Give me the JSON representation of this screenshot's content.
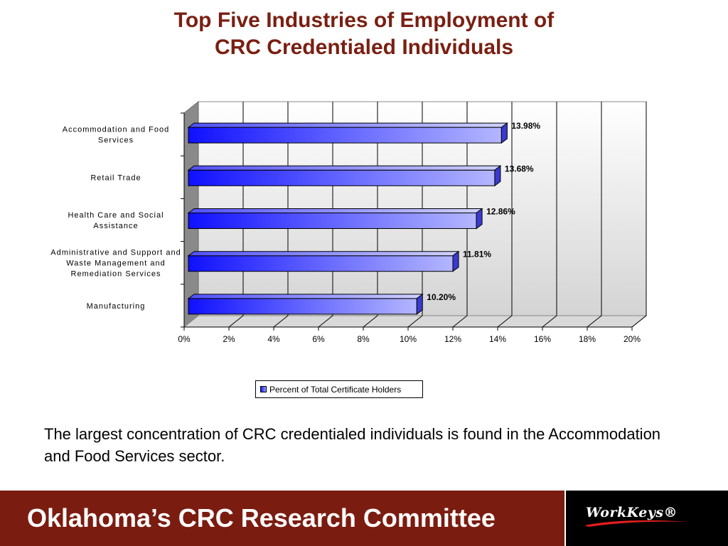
{
  "title": {
    "line1": "Top Five Industries of Employment of",
    "line2": "CRC Credentialed Individuals"
  },
  "chart_data": {
    "type": "bar",
    "orientation": "horizontal",
    "style": "3d",
    "categories": [
      [
        "Accommodation and Food",
        "Services"
      ],
      [
        "Retail Trade"
      ],
      [
        "Health Care and Social",
        "Assistance"
      ],
      [
        "Administrative and Support and",
        "Waste Management and",
        "Remediation Services"
      ],
      [
        "Manufacturing"
      ]
    ],
    "series": [
      {
        "name": "Percent of Total Certificate Holders",
        "values": [
          13.98,
          13.68,
          12.86,
          11.81,
          10.2
        ],
        "labels": [
          "13.98%",
          "13.68%",
          "12.86%",
          "11.81%",
          "10.20%"
        ]
      }
    ],
    "xlim": [
      0,
      20
    ],
    "xticks": [
      "0%",
      "2%",
      "4%",
      "6%",
      "8%",
      "10%",
      "12%",
      "14%",
      "16%",
      "18%",
      "20%"
    ],
    "grid": true,
    "legend_position": "bottom",
    "bar_color": "#1a1aff"
  },
  "caption": "The largest concentration of CRC credentialed individuals is found in the Accommodation and Food Services sector.",
  "footer": {
    "title": "Oklahoma’s CRC Research Committee",
    "logo_text": "WorkKeys®"
  }
}
